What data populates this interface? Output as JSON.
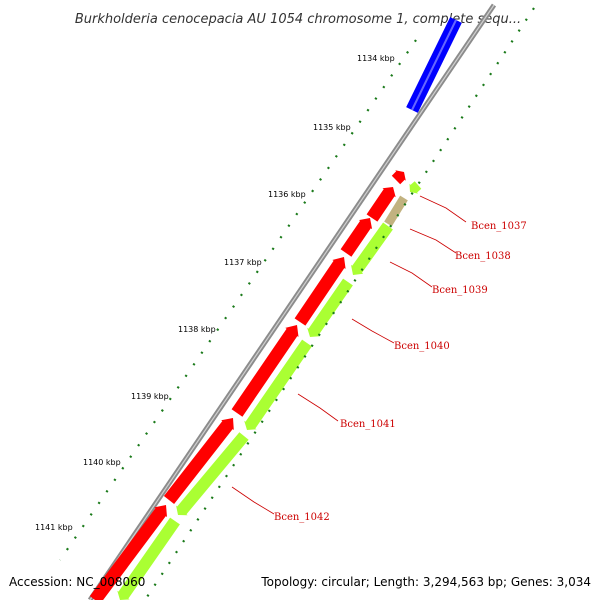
{
  "title": "Burkholderia cenocepacia AU 1054 chromosome 1, complete sequ...",
  "footer": {
    "accession": "Accession: NC_008060",
    "summary": "Topology: circular; Length: 3,294,563 bp; Genes: 3,034"
  },
  "colors": {
    "backbone": "#9a9a9a",
    "forward_cds": "#ff0000",
    "reverse_cds": "#aaff33",
    "blue_feature": "#0000ff",
    "tan_feature": "#c2b280",
    "ticks": "#1a7a1a",
    "gene_label": "#cc0000"
  },
  "kbp_labels": [
    "1134 kbp",
    "1135 kbp",
    "1136 kbp",
    "1137 kbp",
    "1138 kbp",
    "1139 kbp",
    "1140 kbp",
    "1141 kbp"
  ],
  "gene_labels": [
    "Bcen_1037",
    "Bcen_1038",
    "Bcen_1039",
    "Bcen_1040",
    "Bcen_1041",
    "Bcen_1042"
  ]
}
